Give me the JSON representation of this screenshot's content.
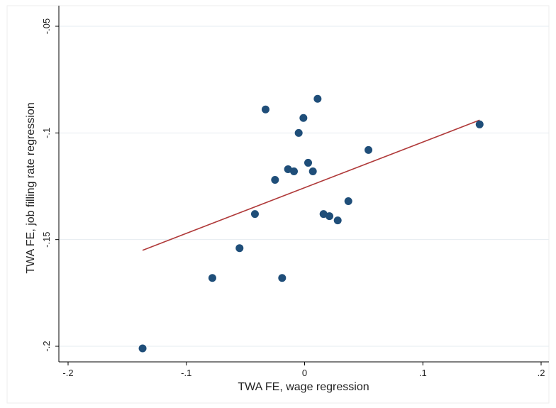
{
  "chart_data": {
    "type": "scatter",
    "title": "",
    "xlabel": "TWA FE, wage regression",
    "ylabel": "TWA FE, job filling rate regression",
    "xlim": [
      -0.2,
      0.2
    ],
    "ylim": [
      -0.2,
      -0.05
    ],
    "y_reversed": true,
    "grid": "horizontal",
    "legend": "none",
    "x_ticks": [
      -0.2,
      -0.1,
      0,
      0.1,
      0.2
    ],
    "x_tick_labels": [
      "-.2",
      "-.1",
      "0",
      ".1",
      ".2"
    ],
    "y_ticks": [
      -0.05,
      -0.1,
      -0.15,
      -0.2
    ],
    "y_tick_labels": [
      "-.05",
      "-.1",
      "-.15",
      "-.2"
    ],
    "series": [
      {
        "type": "scatter",
        "color": "#1f4e79",
        "points": [
          {
            "x": -0.137,
            "y": -0.201
          },
          {
            "x": -0.078,
            "y": -0.168
          },
          {
            "x": -0.055,
            "y": -0.154
          },
          {
            "x": -0.042,
            "y": -0.138
          },
          {
            "x": -0.033,
            "y": -0.089
          },
          {
            "x": -0.025,
            "y": -0.122
          },
          {
            "x": -0.019,
            "y": -0.168
          },
          {
            "x": -0.014,
            "y": -0.117
          },
          {
            "x": -0.009,
            "y": -0.118
          },
          {
            "x": -0.005,
            "y": -0.1
          },
          {
            "x": -0.001,
            "y": -0.093
          },
          {
            "x": 0.003,
            "y": -0.114
          },
          {
            "x": 0.007,
            "y": -0.118
          },
          {
            "x": 0.011,
            "y": -0.084
          },
          {
            "x": 0.016,
            "y": -0.138
          },
          {
            "x": 0.021,
            "y": -0.139
          },
          {
            "x": 0.028,
            "y": -0.141
          },
          {
            "x": 0.037,
            "y": -0.132
          },
          {
            "x": 0.054,
            "y": -0.108
          },
          {
            "x": 0.148,
            "y": -0.096
          }
        ]
      },
      {
        "type": "line",
        "color": "#b03a3a",
        "points": [
          {
            "x": -0.137,
            "y": -0.155
          },
          {
            "x": 0.148,
            "y": -0.094
          }
        ]
      }
    ]
  }
}
